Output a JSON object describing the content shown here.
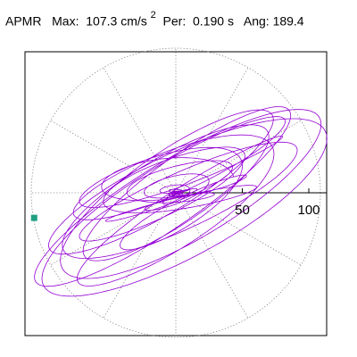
{
  "title": {
    "station": "APMR",
    "max_label": "Max:",
    "max_value": "107.3",
    "max_unit": "cm/s",
    "max_exponent": "2",
    "per_label": "Per:",
    "per_value": "0.190 s",
    "ang_label": "Ang:",
    "ang_value": "189.4"
  },
  "chart_data": {
    "type": "polar-orbit",
    "title": "APMR  Max:  107.3 cm/s 2  Per:  0.190 s   Ang: 189.4",
    "radial_ticks": [
      50,
      100
    ],
    "radial_tick_labels": [
      "50",
      "100"
    ],
    "radial_range": [
      0,
      120
    ],
    "angular_grid_spacing_deg": 30,
    "max_amplitude": 107.3,
    "max_angle_deg": 189.4,
    "period_s": 0.19,
    "grid": true,
    "colors": {
      "trace": "#9400d3",
      "grid": "#7f7f7f",
      "axis": "#000000",
      "max_marker": "#20a080"
    },
    "max_marker_shape": "square"
  }
}
